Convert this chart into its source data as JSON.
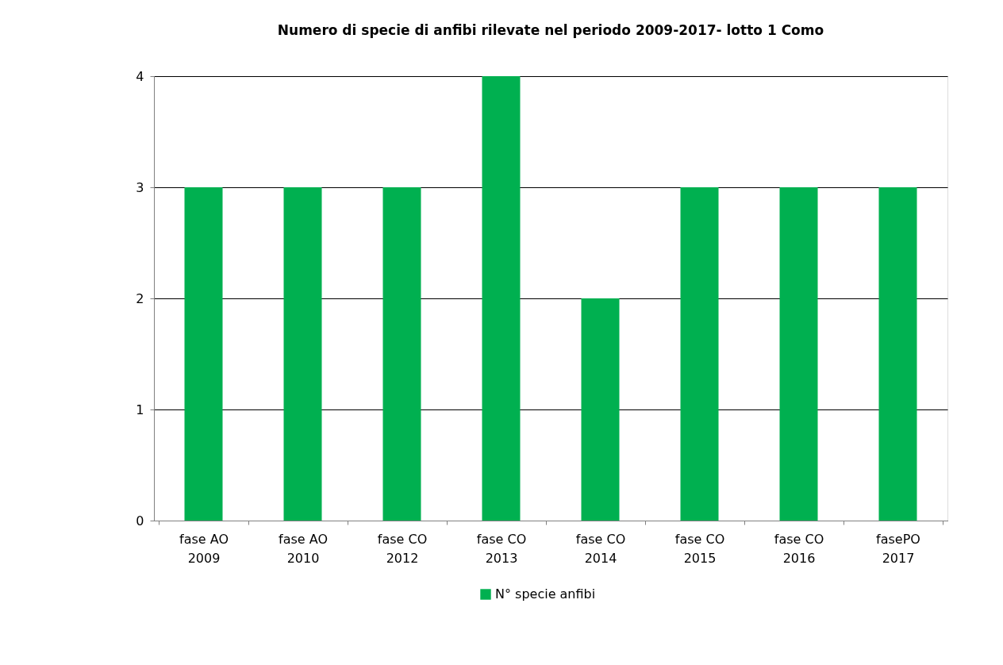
{
  "chart_data": {
    "type": "bar",
    "title": "Numero di specie di anfibi rilevate nel periodo 2009-2017- lotto 1 Como",
    "categories": [
      "fase AO\n2009",
      "fase AO\n2010",
      "fase CO\n2012",
      "fase CO\n2013",
      "fase CO\n2014",
      "fase CO\n2015",
      "fase CO\n2016",
      "fasePO\n2017"
    ],
    "series": [
      {
        "name": "N° specie anfibi",
        "color": "#00b050",
        "values": [
          3,
          3,
          3,
          4,
          2,
          3,
          3,
          3
        ]
      }
    ],
    "ylim": [
      0,
      4
    ],
    "yticks": [
      0,
      1,
      2,
      3,
      4
    ],
    "grid": "y",
    "legend": "bottom"
  }
}
